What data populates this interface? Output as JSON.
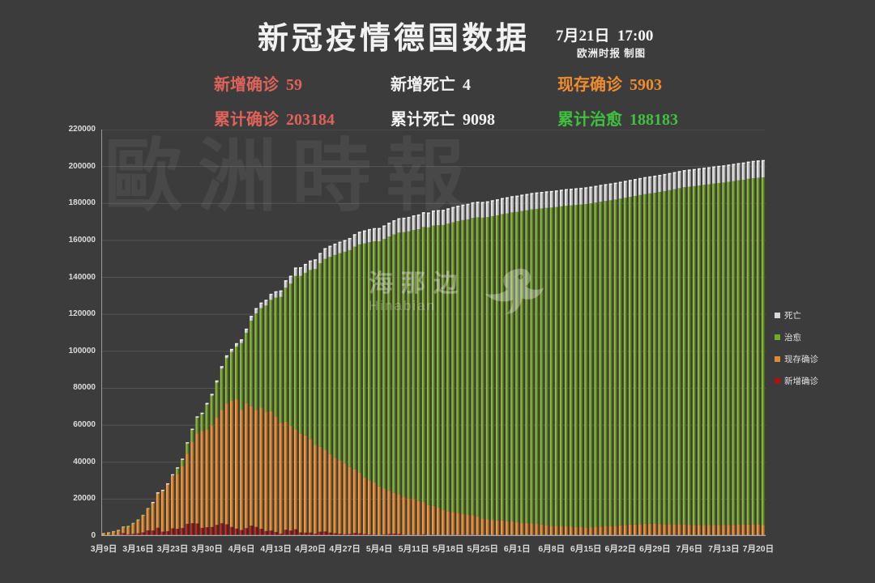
{
  "header": {
    "title": "新冠疫情德国数据",
    "datetime": "7月21日  17:00",
    "credit": "欧洲时报 制图"
  },
  "stats": [
    {
      "label": "新增确诊",
      "value": "59",
      "color": "#e0635b"
    },
    {
      "label": "新增死亡",
      "value": "4",
      "color": "#f2f2f2"
    },
    {
      "label": "现存确诊",
      "value": "5903",
      "color": "#ef8c2d"
    },
    {
      "label": "累计确诊",
      "value": "203184",
      "color": "#e0635b"
    },
    {
      "label": "累计死亡",
      "value": "9098",
      "color": "#f2f2f2"
    },
    {
      "label": "累计治愈",
      "value": "188183",
      "color": "#3fc13f"
    }
  ],
  "watermarks": {
    "big": "歐洲時報",
    "center_cn": "海那边",
    "center_en": "Hinabian"
  },
  "chart_data": {
    "type": "bar",
    "stacked": true,
    "grid": true,
    "ylim": [
      0,
      220000
    ],
    "ytick_step": 20000,
    "yticks": [
      "0",
      "20000",
      "40000",
      "60000",
      "80000",
      "100000",
      "120000",
      "140000",
      "160000",
      "180000",
      "200000",
      "220000"
    ],
    "xtick_every": 7,
    "xtick_labels": [
      "3月9日",
      "3月16日",
      "3月23日",
      "3月30日",
      "4月6日",
      "4月13日",
      "4月20日",
      "4月27日",
      "5月4日",
      "5月11日",
      "5月18日",
      "5月25日",
      "6月1日",
      "6月8日",
      "6月15日",
      "6月22日",
      "6月29日",
      "7月6日",
      "7月13日",
      "7月20日"
    ],
    "legend_position": "right",
    "legend": [
      {
        "label": "死亡",
        "color": "#d9d9d9"
      },
      {
        "label": "治愈",
        "color": "#76a828"
      },
      {
        "label": "现存确诊",
        "color": "#e0892f"
      },
      {
        "label": "新增确诊",
        "color": "#a81410"
      }
    ],
    "series": [
      {
        "name": "新增确诊",
        "gradient": [
          "#d14c3c",
          "#a81410",
          "#5e0a06"
        ],
        "values": [
          210,
          281,
          451,
          570,
          1597,
          910,
          1210,
          1477,
          1985,
          3070,
          2993,
          4528,
          2365,
          2660,
          4183,
          3930,
          4337,
          6615,
          6933,
          6824,
          4400,
          4790,
          4923,
          6064,
          6922,
          6365,
          4933,
          4031,
          3251,
          4289,
          5633,
          4939,
          3936,
          2737,
          2946,
          2218,
          1287,
          3394,
          2945,
          3699,
          1945,
          1842,
          1881,
          1226,
          2357,
          2481,
          1870,
          1514,
          1257,
          988,
          1154,
          1627,
          1470,
          1068,
          890,
          697,
          488,
          855,
          1155,
          1268,
          1158,
          736,
          555,
          697,
          595,
          927,
          380,
          755,
          466,
          308,
          544,
          661,
          638,
          623,
          548,
          689,
          618,
          270,
          312,
          507,
          498,
          702,
          412,
          595,
          300,
          513,
          408,
          503,
          312,
          298,
          301,
          214,
          302,
          397,
          315,
          208,
          296,
          211,
          308,
          402,
          397,
          501,
          408,
          396,
          411,
          503,
          498,
          512,
          488,
          506,
          497,
          408,
          397,
          412,
          498,
          503,
          512,
          587,
          503,
          312,
          298,
          397,
          306,
          298,
          412,
          307,
          298,
          402,
          397,
          406,
          302,
          412,
          398,
          249,
          59
        ]
      },
      {
        "name": "现存确诊",
        "gradient": [
          "#f3b268",
          "#e0892f",
          "#8a4f16"
        ],
        "values": [
          1180,
          1530,
          1972,
          2572,
          3347,
          4345,
          5643,
          7216,
          9209,
          11767,
          15043,
          18653,
          22083,
          25240,
          28424,
          29600,
          33547,
          37960,
          43900,
          48786,
          52364,
          52855,
          54925,
          58269,
          61253,
          65350,
          68256,
          69816,
          65090,
          67684,
          64651,
          63193,
          65533,
          64606,
          64578,
          62506,
          59906,
          58396,
          56648,
          53948,
          53441,
          52614,
          50638,
          48067,
          45921,
          44225,
          42440,
          40823,
          39824,
          38374,
          36186,
          34633,
          32877,
          30464,
          29188,
          28234,
          26307,
          24781,
          23525,
          22108,
          21390,
          20451,
          19931,
          19339,
          18277,
          17615,
          16359,
          15603,
          14862,
          13738,
          12893,
          12251,
          11810,
          11370,
          10834,
          10497,
          9964,
          9217,
          8676,
          8235,
          7894,
          7653,
          7612,
          7271,
          7130,
          6807,
          6684,
          6361,
          6239,
          5916,
          5694,
          5371,
          5161,
          5051,
          4941,
          4830,
          4620,
          4610,
          4400,
          4386,
          4573,
          4659,
          4846,
          5032,
          5219,
          5305,
          5494,
          5682,
          5771,
          5959,
          6148,
          6236,
          6325,
          6119,
          5912,
          5906,
          5799,
          5793,
          5786,
          5780,
          5674,
          5669,
          5663,
          5657,
          5652,
          5646,
          5640,
          5635,
          5630,
          5725,
          5820,
          5816,
          5911,
          5906,
          5903
        ]
      },
      {
        "name": "治愈",
        "gradient": [
          "#aacb62",
          "#74a428",
          "#3a5a14"
        ],
        "values": [
          18,
          18,
          25,
          25,
          46,
          46,
          46,
          67,
          67,
          105,
          113,
          180,
          233,
          266,
          453,
          3243,
          3547,
          5673,
          6658,
          8481,
          9211,
          13500,
          16100,
          18700,
          22440,
          24575,
          26400,
          28700,
          36100,
          38000,
          46300,
          52400,
          53900,
          57400,
          60300,
          64300,
          68200,
          72600,
          77000,
          83100,
          85400,
          88000,
          91500,
          95200,
          99400,
          103300,
          106800,
          109800,
          112000,
          114500,
          117400,
          120400,
          123500,
          126900,
          129000,
          130600,
          132700,
          135100,
          137400,
          139900,
          141700,
          143300,
          144400,
          145600,
          147200,
          148700,
          150300,
          151700,
          152900,
          154300,
          155700,
          156900,
          158000,
          159000,
          160000,
          161000,
          161900,
          162800,
          163600,
          164400,
          165200,
          165900,
          166600,
          167300,
          168000,
          168600,
          169200,
          169900,
          170500,
          171100,
          171600,
          172200,
          172600,
          173000,
          173500,
          173900,
          174300,
          174600,
          175000,
          175300,
          175500,
          175800,
          176100,
          176300,
          176500,
          176800,
          177100,
          177400,
          177800,
          178100,
          178400,
          178800,
          179100,
          179700,
          180300,
          180800,
          181400,
          181900,
          182500,
          183000,
          183400,
          183700,
          184100,
          184400,
          184700,
          185100,
          185400,
          185700,
          186100,
          186400,
          186700,
          187100,
          187400,
          187800,
          188183
        ]
      },
      {
        "name": "死亡",
        "gradient": [
          "#ffffff",
          "#cfcfcf",
          "#8f8f8f"
        ],
        "values": [
          2,
          2,
          3,
          3,
          7,
          9,
          11,
          17,
          24,
          28,
          44,
          67,
          84,
          94,
          123,
          157,
          206,
          267,
          342,
          433,
          525,
          645,
          775,
          931,
          1107,
          1275,
          1444,
          1584,
          1810,
          2016,
          2349,
          2607,
          2767,
          2894,
          3022,
          3194,
          3294,
          3804,
          4052,
          4352,
          4459,
          4586,
          4862,
          5033,
          5279,
          5575,
          5760,
          5877,
          5976,
          6126,
          6314,
          6467,
          6623,
          6736,
          6812,
          6866,
          6993,
          7119,
          7275,
          7392,
          7510,
          7549,
          7569,
          7661,
          7723,
          7785,
          7841,
          7897,
          7938,
          7962,
          8007,
          8049,
          8090,
          8130,
          8166,
          8203,
          8236,
          8283,
          8324,
          8365,
          8406,
          8447,
          8488,
          8529,
          8570,
          8593,
          8616,
          8639,
          8661,
          8684,
          8706,
          8729,
          8739,
          8749,
          8759,
          8770,
          8780,
          8790,
          8800,
          8814,
          8827,
          8841,
          8854,
          8868,
          8881,
          8895,
          8906,
          8918,
          8929,
          8941,
          8952,
          8964,
          8975,
          8981,
          8988,
          8994,
          9001,
          9007,
          9014,
          9020,
          9026,
          9031,
          9037,
          9043,
          9048,
          9054,
          9060,
          9065,
          9070,
          9075,
          9080,
          9084,
          9089,
          9094,
          9098
        ]
      }
    ]
  }
}
